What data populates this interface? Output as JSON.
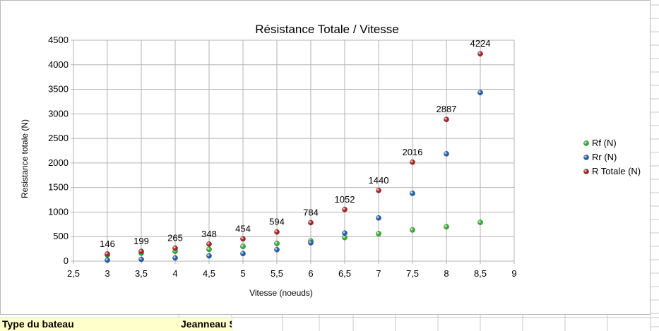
{
  "chart_data": {
    "type": "scatter",
    "title": "Résistance Totale / Vitesse",
    "xlabel": "Vitesse (noeuds)",
    "ylabel": "Resistance totale (N)",
    "xlim": [
      2.5,
      9
    ],
    "ylim": [
      0,
      4500
    ],
    "xticks": [
      2.5,
      3,
      3.5,
      4,
      4.5,
      5,
      5.5,
      6,
      6.5,
      7,
      7.5,
      8,
      8.5,
      9
    ],
    "yticks": [
      0,
      500,
      1000,
      1500,
      2000,
      2500,
      3000,
      3500,
      4000,
      4500
    ],
    "xtick_labels": [
      "2,5",
      "3",
      "3,5",
      "4",
      "4,5",
      "5",
      "5,5",
      "6",
      "6,5",
      "7",
      "7,5",
      "8",
      "8,5",
      "9"
    ],
    "ytick_labels": [
      "0",
      "500",
      "1000",
      "1500",
      "2000",
      "2500",
      "3000",
      "3500",
      "4000",
      "4500"
    ],
    "grid": "vertical and horizontal major gridlines",
    "legend_position": "right",
    "x": [
      3,
      3.5,
      4,
      4.5,
      5,
      5.5,
      6,
      6.5,
      7,
      7.5,
      8,
      8.5
    ],
    "series": [
      {
        "name": "Rf (N)",
        "color": "#2db52d",
        "values": [
          125,
          162,
          200,
          240,
          300,
          360,
          410,
          480,
          560,
          635,
          700,
          790
        ]
      },
      {
        "name": "Rr (N)",
        "color": "#1f5fb4",
        "values": [
          21,
          37,
          65,
          108,
          154,
          234,
          374,
          572,
          880,
          1381,
          2187,
          3434
        ]
      },
      {
        "name": "R Totale (N)",
        "color": "#b02020",
        "values": [
          146,
          199,
          265,
          348,
          454,
          594,
          784,
          1052,
          1440,
          2016,
          2887,
          4224
        ]
      }
    ],
    "data_labels": {
      "series": "R Totale (N)",
      "labels": [
        "146",
        "199",
        "265",
        "348",
        "454",
        "594",
        "784",
        "1052",
        "1440",
        "2016",
        "2887",
        "4224"
      ]
    }
  },
  "sheet": {
    "label_cell": "Type du bateau",
    "value_cell": "Jeanneau Sunshine"
  }
}
